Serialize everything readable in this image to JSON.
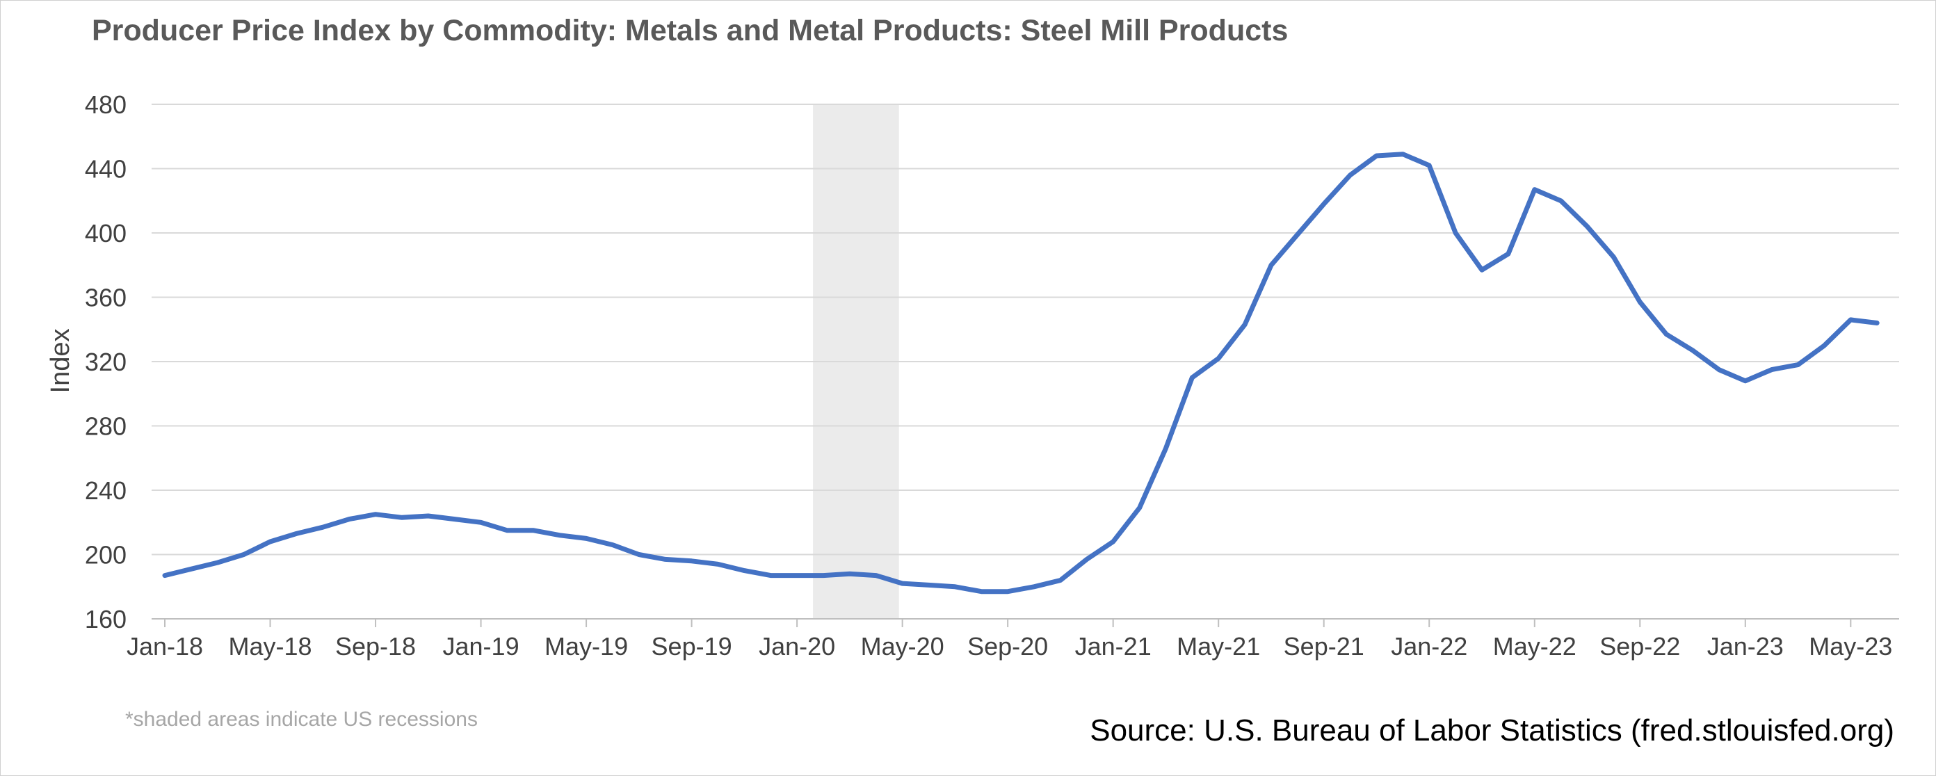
{
  "chart_data": {
    "type": "line",
    "title": "Producer Price Index by Commodity: Metals and Metal Products: Steel Mill Products",
    "xlabel": "",
    "ylabel": "Index",
    "ylim": [
      160,
      480
    ],
    "yticks": [
      160,
      200,
      240,
      280,
      320,
      360,
      400,
      440,
      480
    ],
    "grid": true,
    "x_tick_labels": [
      "Jan-18",
      "May-18",
      "Sep-18",
      "Jan-19",
      "May-19",
      "Sep-19",
      "Jan-20",
      "May-20",
      "Sep-20",
      "Jan-21",
      "May-21",
      "Sep-21",
      "Jan-22",
      "May-22",
      "Sep-22",
      "Jan-23",
      "May-23"
    ],
    "recession_shading": {
      "start": "2020-02",
      "end": "2020-04"
    },
    "series": [
      {
        "color": "#4472c4",
        "x": [
          "2018-01",
          "2018-02",
          "2018-03",
          "2018-04",
          "2018-05",
          "2018-06",
          "2018-07",
          "2018-08",
          "2018-09",
          "2018-10",
          "2018-11",
          "2018-12",
          "2019-01",
          "2019-02",
          "2019-03",
          "2019-04",
          "2019-05",
          "2019-06",
          "2019-07",
          "2019-08",
          "2019-09",
          "2019-10",
          "2019-11",
          "2019-12",
          "2020-01",
          "2020-02",
          "2020-03",
          "2020-04",
          "2020-05",
          "2020-06",
          "2020-07",
          "2020-08",
          "2020-09",
          "2020-10",
          "2020-11",
          "2020-12",
          "2021-01",
          "2021-02",
          "2021-03",
          "2021-04",
          "2021-05",
          "2021-06",
          "2021-07",
          "2021-08",
          "2021-09",
          "2021-10",
          "2021-11",
          "2021-12",
          "2022-01",
          "2022-02",
          "2022-03",
          "2022-04",
          "2022-05",
          "2022-06",
          "2022-07",
          "2022-08",
          "2022-09",
          "2022-10",
          "2022-11",
          "2022-12",
          "2023-01",
          "2023-02",
          "2023-03",
          "2023-04",
          "2023-05",
          "2023-06"
        ],
        "values": [
          187,
          191,
          195,
          200,
          208,
          213,
          217,
          222,
          225,
          223,
          224,
          222,
          220,
          215,
          215,
          212,
          210,
          206,
          200,
          197,
          196,
          194,
          190,
          187,
          187,
          187,
          188,
          187,
          182,
          181,
          180,
          177,
          177,
          180,
          184,
          197,
          208,
          229,
          266,
          310,
          322,
          343,
          380,
          399,
          418,
          436,
          448,
          449,
          442,
          400,
          377,
          387,
          427,
          420,
          404,
          385,
          357,
          337,
          327,
          315,
          308,
          315,
          318,
          330,
          346,
          344
        ]
      }
    ]
  },
  "footer": {
    "note": "*shaded areas indicate US recessions",
    "source": "Source: U.S. Bureau of Labor Statistics (fred.stlouisfed.org)"
  }
}
